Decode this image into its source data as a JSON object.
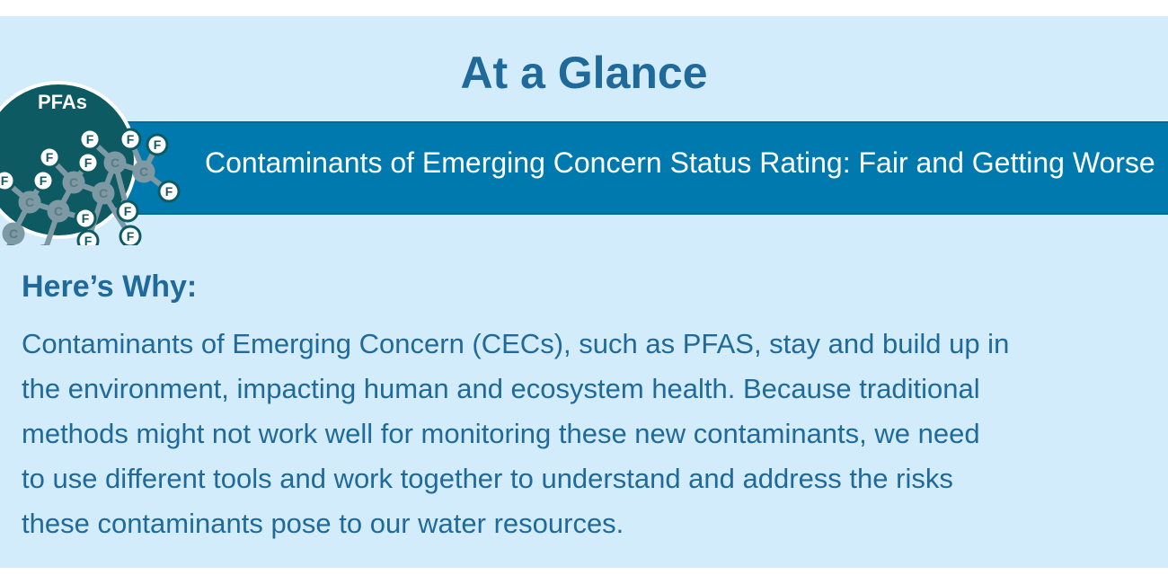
{
  "header": {
    "title": "At a Glance"
  },
  "logo": {
    "label": "PFAs",
    "atom_c": "C",
    "atom_f": "F"
  },
  "banner": {
    "text": "Contaminants of Emerging Concern Status Rating: Fair and Getting Worse"
  },
  "content": {
    "heading": "Here’s Why:",
    "lines": [
      "Contaminants of Emerging Concern (CECs), such as PFAS, stay and build up in",
      "the environment, impacting human and ecosystem health. Because traditional",
      "methods might not work well for monitoring these new contaminants, we need",
      "to use different tools and work together to understand and address the risks",
      "these contaminants pose to our water resources."
    ]
  },
  "colors": {
    "panel": "#d3ecfb",
    "banner": "#007aae",
    "text": "#1f6a9a",
    "logo": "#0d5a63"
  }
}
